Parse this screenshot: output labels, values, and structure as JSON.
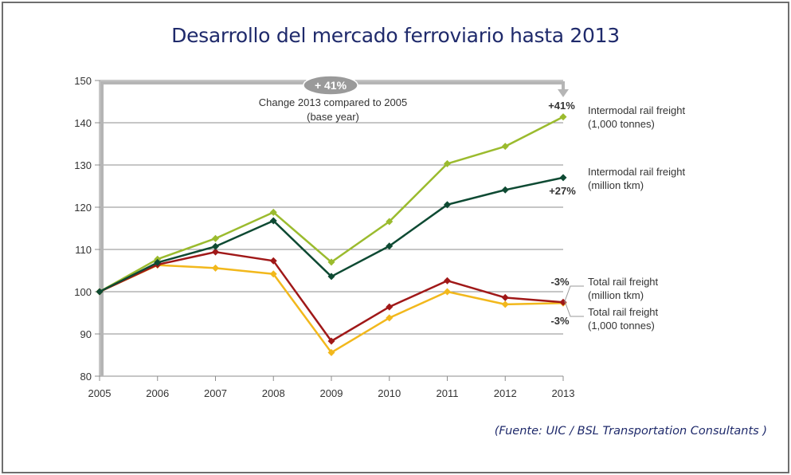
{
  "page": {
    "title": "Desarrollo del mercado ferroviario hasta 2013",
    "source": "(Fuente: UIC / BSL Transportation Consultants )"
  },
  "chart_data": {
    "type": "line",
    "title": "Desarrollo del mercado ferroviario hasta 2013",
    "xlabel": "",
    "ylabel": "",
    "x": [
      "2005",
      "2006",
      "2007",
      "2008",
      "2009",
      "2010",
      "2011",
      "2012",
      "2013"
    ],
    "ylim": [
      80,
      150
    ],
    "yticks": [
      80,
      90,
      100,
      110,
      120,
      130,
      140,
      150
    ],
    "grid": true,
    "legend": "right (labels placed next to line ends)",
    "series": [
      {
        "name": "Intermodal rail freight (1,000 tonnes)",
        "label_lines": [
          "Intermodal rail freight",
          "(1,000 tonnes)"
        ],
        "color": "#9bbb2e",
        "change_label": "+41%",
        "values": [
          100,
          107.7,
          112.6,
          118.8,
          107.0,
          116.6,
          130.3,
          134.4,
          141.4
        ]
      },
      {
        "name": "Intermodal rail freight (million tkm)",
        "label_lines": [
          "Intermodal rail freight",
          "(million tkm)"
        ],
        "color": "#0e4a33",
        "change_label": "+27%",
        "values": [
          100,
          106.9,
          110.7,
          116.8,
          103.6,
          110.8,
          120.6,
          124.1,
          127.0
        ]
      },
      {
        "name": "Total rail freight (million tkm)",
        "label_lines": [
          "Total rail freight",
          "(million tkm)"
        ],
        "color": "#a01818",
        "change_label": "-3%",
        "values": [
          100,
          106.4,
          109.4,
          107.3,
          88.3,
          96.4,
          102.6,
          98.6,
          97.5
        ]
      },
      {
        "name": "Total rail freight (1,000 tonnes)",
        "label_lines": [
          "Total rail freight",
          "(1,000 tonnes)"
        ],
        "color": "#f2b81c",
        "change_label": "-3%",
        "values": [
          100,
          106.3,
          105.6,
          104.2,
          85.6,
          93.8,
          100.0,
          97.0,
          97.3
        ]
      }
    ],
    "annotations": {
      "badge": "+ 41%",
      "bracket_text_lines": [
        "Change 2013 compared to 2005",
        "(base year)"
      ]
    }
  }
}
